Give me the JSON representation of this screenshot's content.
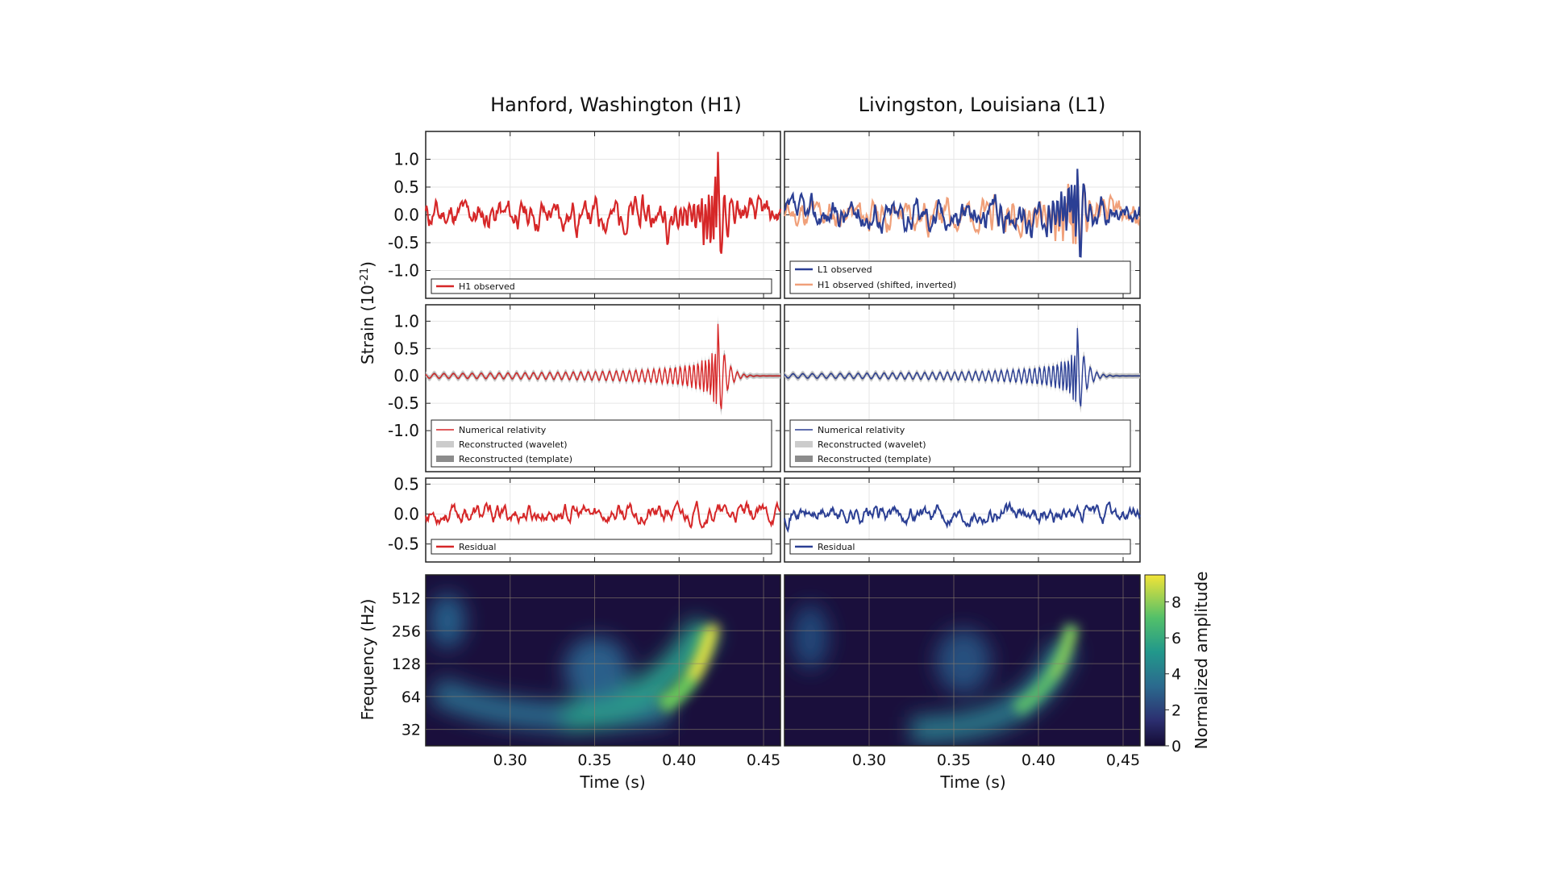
{
  "colors": {
    "red": "#d62728",
    "blue": "#2b3f94",
    "orange": "#f0a07a",
    "light_band": "#cccccc",
    "dark_band": "#8c8c8c",
    "frame": "#222222",
    "grid": "#e6e6e6"
  },
  "chart_data": {
    "type": "line",
    "columns": [
      {
        "title": "Hanford, Washington (H1)"
      },
      {
        "title": "Livingston, Louisiana (L1)"
      }
    ],
    "x_range": [
      0.25,
      0.46
    ],
    "xlabel": "Time (s)",
    "x_tick_labels": {
      "left": [
        "0.30",
        "0.35",
        "0.40",
        "0.45"
      ],
      "right": [
        "0.30",
        "0.35",
        "0.40",
        "0,45"
      ]
    },
    "x_tick_values": [
      0.3,
      0.35,
      0.4,
      0.45
    ],
    "strain_label_main": "Strain (10",
    "strain_label_exp": "-21",
    "strain_label_close": ")",
    "row1": {
      "ylim": [
        -1.5,
        1.5
      ],
      "ticks": [
        {
          "v": 1.0,
          "label": "1.0"
        },
        {
          "v": 0.5,
          "label": "0.5"
        },
        {
          "v": 0.0,
          "label": "0.0"
        },
        {
          "v": -0.5,
          "label": "-0.5"
        },
        {
          "v": -1.0,
          "label": "-1.0"
        }
      ],
      "left_series": [
        {
          "name": "H1 observed",
          "color": "#d62728"
        }
      ],
      "right_series": [
        {
          "name": "L1 observed",
          "color": "#2b3f94"
        },
        {
          "name": "H1 observed (shifted, inverted)",
          "color": "#f0a07a"
        }
      ]
    },
    "row2": {
      "ylim": [
        -1.75,
        1.3
      ],
      "ticks": [
        {
          "v": 1.0,
          "label": "1.0"
        },
        {
          "v": 0.5,
          "label": "0.5"
        },
        {
          "v": 0.0,
          "label": "0.0"
        },
        {
          "v": -0.5,
          "label": "-0.5"
        },
        {
          "v": -1.0,
          "label": "-1.0"
        }
      ],
      "legend": [
        "Numerical relativity",
        "Reconstructed (wavelet)",
        "Reconstructed (template)"
      ]
    },
    "row3": {
      "ylim": [
        -0.8,
        0.6
      ],
      "ticks": [
        {
          "v": 0.5,
          "label": "0.5"
        },
        {
          "v": 0.0,
          "label": "0.0"
        },
        {
          "v": -0.5,
          "label": "-0.5"
        }
      ],
      "legend": [
        "Residual"
      ]
    },
    "row4": {
      "ylabel": "Frequency (Hz)",
      "ylim_log2": [
        4.5,
        9.7
      ],
      "ticks": [
        {
          "v": 32,
          "label": "32"
        },
        {
          "v": 64,
          "label": "64"
        },
        {
          "v": 128,
          "label": "128"
        },
        {
          "v": 256,
          "label": "256"
        },
        {
          "v": 512,
          "label": "512"
        }
      ],
      "colorbar": {
        "label": "Normalized amplitude",
        "range": [
          0,
          9.5
        ],
        "ticks": [
          {
            "v": 0,
            "label": "0"
          },
          {
            "v": 2,
            "label": "2"
          },
          {
            "v": 4,
            "label": "4"
          },
          {
            "v": 6,
            "label": "6"
          },
          {
            "v": 8,
            "label": "8"
          }
        ]
      }
    }
  }
}
